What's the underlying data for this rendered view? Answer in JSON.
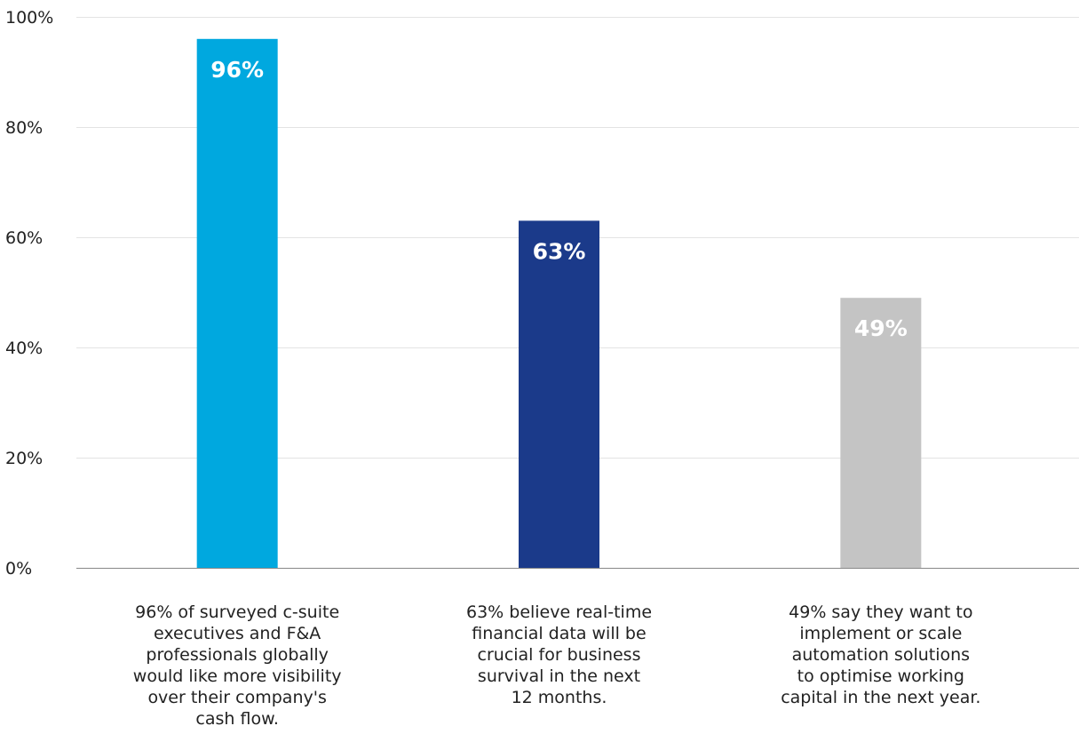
{
  "chart_data": {
    "type": "bar",
    "categories": [
      "96% of surveyed c-suite\nexecutives and F&A\nprofessionals globally\nwould like more visibility\nover their company's\ncash flow.",
      "63% believe real-time\nfinancial data will be\ncrucial for business\nsurvival in the next\n12 months.",
      "49% say they want to\nimplement or scale\nautomation solutions\nto optimise working\ncapital in the next year."
    ],
    "values": [
      96,
      63,
      49
    ],
    "data_labels": [
      "96%",
      "63%",
      "49%"
    ],
    "bar_colors": [
      "#00a8df",
      "#1b3a8a",
      "#c4c4c4"
    ],
    "ylim": [
      0,
      100
    ],
    "yticks": [
      0,
      20,
      40,
      60,
      80,
      100
    ],
    "ytick_labels": [
      "0%",
      "20%",
      "40%",
      "60%",
      "80%",
      "100%"
    ],
    "grid": true,
    "gridline_color": "#e3e3e3",
    "axis_color": "#888888",
    "title": "",
    "xlabel": "",
    "ylabel": ""
  }
}
